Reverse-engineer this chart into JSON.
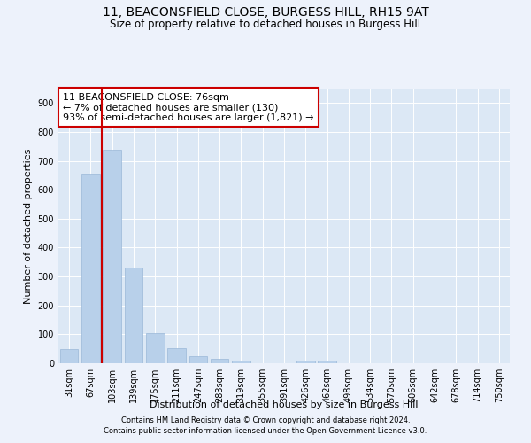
{
  "title1": "11, BEACONSFIELD CLOSE, BURGESS HILL, RH15 9AT",
  "title2": "Size of property relative to detached houses in Burgess Hill",
  "xlabel": "Distribution of detached houses by size in Burgess Hill",
  "ylabel": "Number of detached properties",
  "categories": [
    "31sqm",
    "67sqm",
    "103sqm",
    "139sqm",
    "175sqm",
    "211sqm",
    "247sqm",
    "283sqm",
    "319sqm",
    "355sqm",
    "391sqm",
    "426sqm",
    "462sqm",
    "498sqm",
    "534sqm",
    "570sqm",
    "606sqm",
    "642sqm",
    "678sqm",
    "714sqm",
    "750sqm"
  ],
  "values": [
    50,
    655,
    740,
    330,
    105,
    52,
    25,
    15,
    10,
    0,
    0,
    10,
    10,
    0,
    0,
    0,
    0,
    0,
    0,
    0,
    0
  ],
  "bar_color": "#b8d0ea",
  "bar_edge_color": "#9ab8d8",
  "vline_x": 1.5,
  "vline_color": "#cc0000",
  "annotation_text": "11 BEACONSFIELD CLOSE: 76sqm\n← 7% of detached houses are smaller (130)\n93% of semi-detached houses are larger (1,821) →",
  "annotation_box_color": "#ffffff",
  "annotation_box_edge": "#cc0000",
  "ylim": [
    0,
    950
  ],
  "yticks": [
    0,
    100,
    200,
    300,
    400,
    500,
    600,
    700,
    800,
    900
  ],
  "footer1": "Contains HM Land Registry data © Crown copyright and database right 2024.",
  "footer2": "Contains public sector information licensed under the Open Government Licence v3.0.",
  "bg_color": "#edf2fb",
  "plot_bg": "#dce8f5",
  "title1_fontsize": 10,
  "title2_fontsize": 8.5,
  "tick_fontsize": 7,
  "label_fontsize": 8,
  "footer_fontsize": 6,
  "annotation_fontsize": 8
}
